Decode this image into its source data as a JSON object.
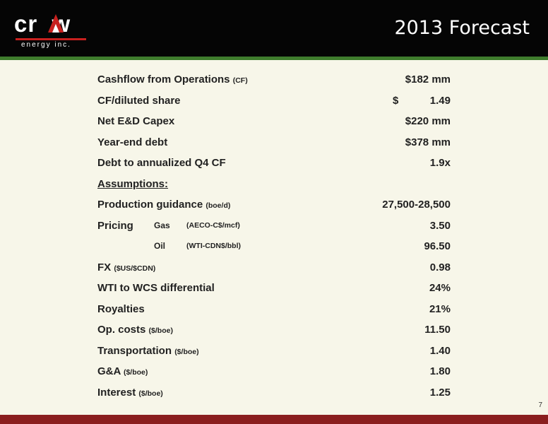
{
  "header": {
    "logo_word": "cr  w",
    "logo_sub": "energy inc.",
    "title": "2013 Forecast"
  },
  "rows": [
    {
      "label": "Cashflow from Operations",
      "unit": "(CF)",
      "value": "$182 mm"
    },
    {
      "label": "CF/diluted share",
      "value_symbol": "$",
      "value": "1.49"
    },
    {
      "label": "Net E&D Capex",
      "value": "$220 mm"
    },
    {
      "label": "Year-end debt",
      "value": "$378 mm"
    },
    {
      "label": "Debt to annualized Q4 CF",
      "value": "1.9x"
    },
    {
      "label": "Assumptions:"
    },
    {
      "label": "Production guidance",
      "unit": "(boe/d)",
      "value": "27,500-28,500"
    },
    {
      "label": "Pricing",
      "sub": "Gas",
      "sub_unit": "(AECO-C$/mcf)",
      "value": "3.50"
    },
    {
      "sub": "Oil",
      "sub_unit": "(WTI-CDN$/bbl)",
      "value": "96.50"
    },
    {
      "label": "FX",
      "unit": "($US/$CDN)",
      "value": "0.98"
    },
    {
      "label": "WTI to WCS differential",
      "value": "24%"
    },
    {
      "label": "Royalties",
      "value": "21%"
    },
    {
      "label": "Op. costs",
      "unit": "($/boe)",
      "value": "11.50"
    },
    {
      "label": "Transportation",
      "unit": "($/boe)",
      "value": "1.40"
    },
    {
      "label": "G&A",
      "unit": "($/boe)",
      "value": "1.80"
    },
    {
      "label": "Interest",
      "unit": "($/boe)",
      "value": "1.25"
    }
  ],
  "page_number": "7",
  "colors": {
    "header_bg": "#050505",
    "accent_green": "#3f7d2d",
    "footer_red": "#8a1e1e",
    "content_bg": "#f7f6e9"
  }
}
